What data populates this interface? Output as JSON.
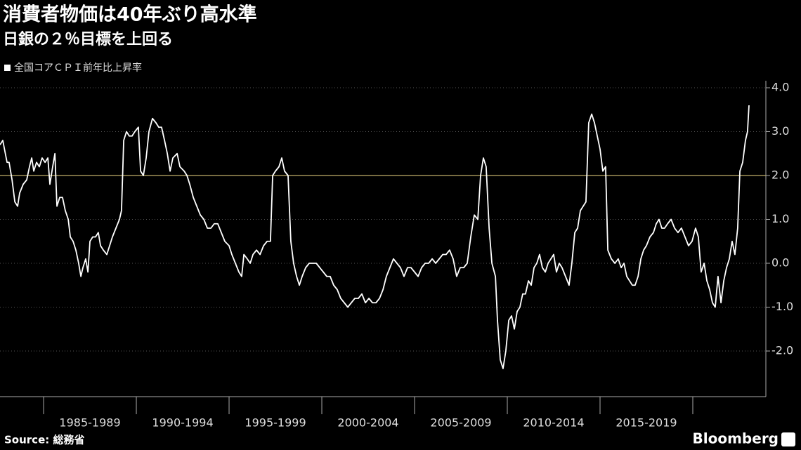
{
  "chart_data": {
    "type": "line",
    "title": "消費者物価は40年ぶり高水準",
    "subtitle": "日銀の２％目標を上回る",
    "source": "Source:  総務省",
    "logo": "Bloomberg",
    "grid": true,
    "xlim": [
      1982.65,
      2023.94
    ],
    "ylim": [
      -3.04,
      4.16
    ],
    "xticks": [
      {
        "value": 1987.5,
        "label": "1985-1989"
      },
      {
        "value": 1992.5,
        "label": "1990-1994"
      },
      {
        "value": 1997.5,
        "label": "1995-1999"
      },
      {
        "value": 2002.5,
        "label": "2000-2004"
      },
      {
        "value": 2007.5,
        "label": "2005-2009"
      },
      {
        "value": 2012.5,
        "label": "2010-2014"
      },
      {
        "value": 2017.5,
        "label": "2015-2019"
      }
    ],
    "yticks": [
      {
        "value": -2,
        "label": "-2.0"
      },
      {
        "value": -1,
        "label": "-1.0"
      },
      {
        "value": 0,
        "label": "0.0"
      },
      {
        "value": 1,
        "label": "1.0"
      },
      {
        "value": 2,
        "label": "2.0"
      },
      {
        "value": 3,
        "label": "3.0"
      },
      {
        "value": 4,
        "label": "4.0"
      }
    ],
    "reference_lines": [
      {
        "value": 2,
        "color": "#bfae6a"
      }
    ],
    "x": [
      1982.65,
      1982.8,
      1983.03,
      1983.14,
      1983.3,
      1983.45,
      1983.6,
      1983.71,
      1983.9,
      1984.09,
      1984.24,
      1984.36,
      1984.47,
      1984.62,
      1984.77,
      1984.92,
      1985.08,
      1985.23,
      1985.34,
      1985.49,
      1985.61,
      1985.72,
      1985.87,
      1986.02,
      1986.17,
      1986.33,
      1986.44,
      1986.59,
      1986.74,
      1986.89,
      1987.01,
      1987.12,
      1987.27,
      1987.39,
      1987.5,
      1987.65,
      1987.8,
      1987.95,
      1988.07,
      1988.22,
      1988.41,
      1988.56,
      1988.71,
      1988.9,
      1989.09,
      1989.2,
      1989.32,
      1989.47,
      1989.62,
      1989.77,
      1989.92,
      1990.11,
      1990.23,
      1990.38,
      1990.53,
      1990.68,
      1990.87,
      1991.06,
      1991.21,
      1991.36,
      1991.52,
      1991.67,
      1991.82,
      1991.97,
      1992.2,
      1992.35,
      1992.58,
      1992.73,
      1992.88,
      1993.07,
      1993.26,
      1993.45,
      1993.64,
      1993.83,
      1994.02,
      1994.2,
      1994.39,
      1994.58,
      1994.77,
      1995.0,
      1995.15,
      1995.34,
      1995.53,
      1995.68,
      1995.8,
      1995.98,
      1996.14,
      1996.29,
      1996.48,
      1996.67,
      1996.86,
      1997.05,
      1997.23,
      1997.35,
      1997.5,
      1997.69,
      1997.84,
      1997.99,
      1998.18,
      1998.33,
      1998.48,
      1998.64,
      1998.79,
      1998.94,
      1999.13,
      1999.32,
      1999.51,
      1999.7,
      1999.89,
      2000.08,
      2000.27,
      2000.45,
      2000.64,
      2000.83,
      2001.02,
      2001.21,
      2001.4,
      2001.59,
      2001.78,
      2001.97,
      2002.16,
      2002.35,
      2002.54,
      2002.73,
      2002.92,
      2003.11,
      2003.3,
      2003.48,
      2003.67,
      2003.86,
      2004.05,
      2004.24,
      2004.43,
      2004.62,
      2004.81,
      2005.0,
      2005.19,
      2005.38,
      2005.57,
      2005.76,
      2005.95,
      2006.14,
      2006.33,
      2006.52,
      2006.7,
      2006.89,
      2007.08,
      2007.27,
      2007.46,
      2007.65,
      2007.84,
      2008.03,
      2008.22,
      2008.41,
      2008.56,
      2008.71,
      2008.86,
      2009.02,
      2009.17,
      2009.36,
      2009.47,
      2009.62,
      2009.77,
      2009.92,
      2010.08,
      2010.23,
      2010.38,
      2010.53,
      2010.68,
      2010.83,
      2010.98,
      2011.14,
      2011.29,
      2011.44,
      2011.59,
      2011.74,
      2011.89,
      2012.05,
      2012.2,
      2012.35,
      2012.5,
      2012.65,
      2012.8,
      2012.95,
      2013.14,
      2013.33,
      2013.48,
      2013.64,
      2013.79,
      2013.94,
      2014.09,
      2014.24,
      2014.39,
      2014.55,
      2014.7,
      2014.85,
      2015.0,
      2015.15,
      2015.3,
      2015.42,
      2015.61,
      2015.8,
      2015.98,
      2016.14,
      2016.29,
      2016.44,
      2016.59,
      2016.74,
      2016.89,
      2017.05,
      2017.2,
      2017.35,
      2017.5,
      2017.69,
      2017.88,
      2018.03,
      2018.18,
      2018.33,
      2018.48,
      2018.64,
      2018.83,
      2019.02,
      2019.2,
      2019.39,
      2019.58,
      2019.77,
      2019.96,
      2020.15,
      2020.3,
      2020.45,
      2020.61,
      2020.76,
      2020.91,
      2021.06,
      2021.21,
      2021.36,
      2021.52,
      2021.67,
      2021.82,
      2021.97,
      2022.12,
      2022.27,
      2022.42,
      2022.54,
      2022.69,
      2022.84,
      2022.95,
      2023.03
    ],
    "series": [
      {
        "name": "全国コアＣＰＩ前年比上昇率",
        "color": "#ffffff",
        "values": [
          2.7,
          2.8,
          2.3,
          2.3,
          1.9,
          1.4,
          1.3,
          1.6,
          1.8,
          1.9,
          2.2,
          2.4,
          2.1,
          2.3,
          2.2,
          2.4,
          2.3,
          2.4,
          1.8,
          2.2,
          2.5,
          1.3,
          1.5,
          1.5,
          1.2,
          1.0,
          0.6,
          0.5,
          0.3,
          0.0,
          -0.3,
          -0.1,
          0.1,
          -0.2,
          0.5,
          0.6,
          0.6,
          0.7,
          0.4,
          0.3,
          0.2,
          0.4,
          0.6,
          0.8,
          1.0,
          1.2,
          2.8,
          3.0,
          2.9,
          2.9,
          3.0,
          3.1,
          2.1,
          2.0,
          2.4,
          3.0,
          3.3,
          3.2,
          3.1,
          3.1,
          2.8,
          2.5,
          2.1,
          2.4,
          2.5,
          2.2,
          2.1,
          2.0,
          1.8,
          1.5,
          1.3,
          1.1,
          1.0,
          0.8,
          0.8,
          0.9,
          0.9,
          0.7,
          0.5,
          0.4,
          0.2,
          0.0,
          -0.2,
          -0.3,
          0.2,
          0.1,
          0.0,
          0.2,
          0.3,
          0.2,
          0.4,
          0.5,
          0.5,
          2.0,
          2.1,
          2.2,
          2.4,
          2.1,
          2.0,
          0.5,
          0.0,
          -0.3,
          -0.5,
          -0.3,
          -0.1,
          0.0,
          0.0,
          0.0,
          -0.1,
          -0.2,
          -0.3,
          -0.3,
          -0.5,
          -0.6,
          -0.8,
          -0.9,
          -1.0,
          -0.9,
          -0.8,
          -0.8,
          -0.7,
          -0.9,
          -0.8,
          -0.9,
          -0.9,
          -0.8,
          -0.6,
          -0.3,
          -0.1,
          0.1,
          0.0,
          -0.1,
          -0.3,
          -0.1,
          -0.1,
          -0.2,
          -0.3,
          -0.1,
          0.0,
          0.0,
          0.1,
          0.0,
          0.1,
          0.2,
          0.2,
          0.3,
          0.1,
          -0.3,
          -0.1,
          -0.1,
          0.0,
          0.6,
          1.1,
          1.0,
          2.0,
          2.4,
          2.2,
          0.8,
          0.0,
          -0.3,
          -1.3,
          -2.2,
          -2.4,
          -2.0,
          -1.3,
          -1.2,
          -1.5,
          -1.1,
          -1.0,
          -0.7,
          -0.7,
          -0.4,
          -0.5,
          -0.1,
          0.0,
          0.2,
          -0.1,
          -0.2,
          0.0,
          0.1,
          0.2,
          -0.2,
          0.0,
          -0.1,
          -0.3,
          -0.5,
          0.0,
          0.7,
          0.8,
          1.2,
          1.3,
          1.4,
          3.2,
          3.4,
          3.2,
          2.9,
          2.6,
          2.1,
          2.2,
          0.3,
          0.1,
          0.0,
          0.1,
          -0.1,
          0.0,
          -0.3,
          -0.4,
          -0.5,
          -0.5,
          -0.3,
          0.1,
          0.3,
          0.4,
          0.6,
          0.7,
          0.9,
          1.0,
          0.8,
          0.8,
          0.9,
          1.0,
          0.8,
          0.7,
          0.8,
          0.6,
          0.4,
          0.5,
          0.8,
          0.6,
          -0.2,
          0.0,
          -0.4,
          -0.6,
          -0.9,
          -1.0,
          -0.3,
          -0.9,
          -0.4,
          -0.1,
          0.1,
          0.5,
          0.2,
          0.8,
          2.1,
          2.3,
          2.8,
          3.0,
          3.6
        ]
      }
    ]
  }
}
